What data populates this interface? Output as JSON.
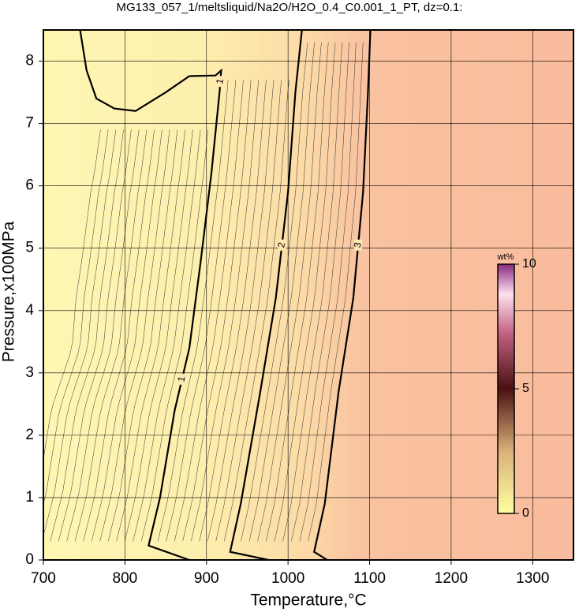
{
  "chart_data": {
    "type": "contour",
    "title": "MG133_057_1/meltsliquid/Na2O/H2O_0.4_C0.001_1_PT, dz=0.1:",
    "x_label": "Temperature,°C",
    "y_label": "Pressure,x100MPa",
    "xlim": [
      700,
      1350
    ],
    "ylim": [
      0,
      8.5
    ],
    "xticks": [
      700,
      800,
      900,
      1000,
      1100,
      1200,
      1300
    ],
    "yticks": [
      0,
      1,
      2,
      3,
      4,
      5,
      6,
      7,
      8
    ],
    "grid": true,
    "contours": [
      {
        "level": 1,
        "x": [
          879,
          829,
          843,
          861,
          879,
          893,
          906,
          916,
          918,
          911,
          879,
          850,
          813,
          787,
          765,
          753,
          745
        ],
        "y": [
          0,
          0.23,
          1.0,
          2.4,
          3.4,
          4.8,
          6.2,
          7.5,
          7.85,
          7.77,
          7.76,
          7.5,
          7.2,
          7.24,
          7.4,
          7.85,
          8.5
        ]
      },
      {
        "level": 2,
        "x": [
          976,
          929,
          942,
          966,
          985,
          1000,
          1009,
          1017
        ],
        "y": [
          0,
          0.13,
          0.9,
          2.7,
          4.2,
          5.9,
          7.5,
          8.5
        ]
      },
      {
        "level": 3,
        "x": [
          1048,
          1032,
          1045,
          1062,
          1080,
          1092,
          1098,
          1101
        ],
        "y": [
          0,
          0.13,
          0.9,
          2.7,
          4.2,
          5.9,
          7.5,
          8.5
        ]
      }
    ],
    "colorbar": {
      "label": "wt%",
      "lim": [
        0,
        10
      ],
      "ticks": [
        0,
        5,
        10
      ]
    }
  }
}
